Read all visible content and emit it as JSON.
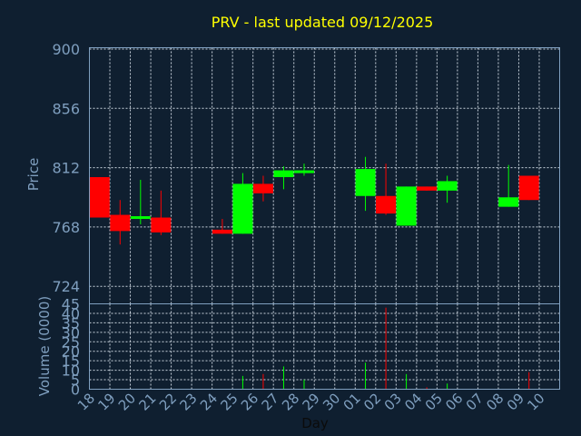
{
  "chart_data": {
    "type": "candlestick",
    "title": "PRV - last updated 09/12/2025",
    "xlabel": "Day",
    "price_axis": {
      "label": "Price",
      "ylim": [
        711,
        901
      ],
      "ticks": [
        "724",
        "768",
        "812",
        "856",
        "900"
      ]
    },
    "volume_axis": {
      "label": "Volume (0000)",
      "ylim": [
        0,
        45
      ],
      "ticks": [
        "0",
        "5",
        "10",
        "15",
        "20",
        "25",
        "30",
        "35",
        "40",
        "45"
      ]
    },
    "x_ticks": [
      "18",
      "19",
      "20",
      "21",
      "22",
      "23",
      "24",
      "25",
      "26",
      "27",
      "28",
      "29",
      "30",
      "01",
      "02",
      "03",
      "04",
      "05",
      "06",
      "07",
      "08",
      "09",
      "10"
    ],
    "grid": true,
    "up_color": "#00ff00",
    "down_color": "#ff0000",
    "candles": [
      {
        "day": "18",
        "open": 805,
        "high": 805,
        "low": 775,
        "close": 775,
        "volume": 0
      },
      {
        "day": "19",
        "open": 777,
        "high": 788,
        "low": 755,
        "close": 765,
        "volume": 0
      },
      {
        "day": "20",
        "open": 775,
        "high": 803,
        "low": 770,
        "close": 776,
        "volume": 0
      },
      {
        "day": "21",
        "open": 775,
        "high": 795,
        "low": 762,
        "close": 764,
        "volume": 0
      },
      {
        "day": "24",
        "open": 766,
        "high": 774,
        "low": 763,
        "close": 763,
        "volume": 0
      },
      {
        "day": "25",
        "open": 763,
        "high": 808,
        "low": 763,
        "close": 800,
        "volume": 7
      },
      {
        "day": "26",
        "open": 800,
        "high": 806,
        "low": 787,
        "close": 793,
        "volume": 8
      },
      {
        "day": "27",
        "open": 805,
        "high": 813,
        "low": 796,
        "close": 810,
        "volume": 12
      },
      {
        "day": "28",
        "open": 808,
        "high": 815,
        "low": 806,
        "close": 810,
        "volume": 5
      },
      {
        "day": "01",
        "open": 791,
        "high": 820,
        "low": 780,
        "close": 811,
        "volume": 14
      },
      {
        "day": "02",
        "open": 791,
        "high": 815,
        "low": 777,
        "close": 778,
        "volume": 43
      },
      {
        "day": "03",
        "open": 769,
        "high": 798,
        "low": 769,
        "close": 798,
        "volume": 8
      },
      {
        "day": "04",
        "open": 798,
        "high": 798,
        "low": 795,
        "close": 795,
        "volume": 1
      },
      {
        "day": "05",
        "open": 795,
        "high": 806,
        "low": 786,
        "close": 802,
        "volume": 3
      },
      {
        "day": "08",
        "open": 783,
        "high": 814,
        "low": 783,
        "close": 790,
        "volume": 0
      },
      {
        "day": "09",
        "open": 806,
        "high": 806,
        "low": 788,
        "close": 788,
        "volume": 9
      }
    ]
  }
}
